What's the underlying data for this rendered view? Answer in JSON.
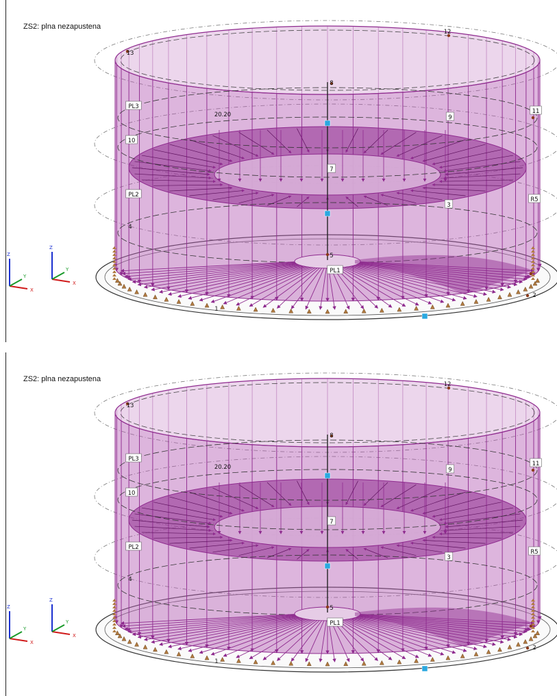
{
  "panels": [
    {
      "caption": "ZS2: plna nezapustena",
      "labels": {
        "n12": "12",
        "n13": "13",
        "n8": "8",
        "n11": "11",
        "n9": "9",
        "n10": "10",
        "n7": "7",
        "n3": "3",
        "n4": "4",
        "n5": "5",
        "n1": "1",
        "n2": "2",
        "nR5": "R5",
        "pl3": "PL3",
        "pl2": "PL2",
        "pl1": "PL1",
        "dim": "20.20"
      },
      "axes": {
        "z": "Z",
        "y": "Y",
        "x": "X"
      }
    },
    {
      "caption": "ZS2: plna nezapustena",
      "labels": {
        "n12": "12",
        "n13": "13",
        "n8": "8",
        "n11": "11",
        "n9": "9",
        "n10": "10",
        "n7": "7",
        "n3": "3",
        "n4": "4",
        "n5": "5",
        "n1": "1",
        "n2": "2",
        "nR5": "R5",
        "pl3": "PL3",
        "pl2": "PL2",
        "pl1": "PL1",
        "dim": "20.20"
      },
      "axes": {
        "z": "Z",
        "y": "Y",
        "x": "X"
      }
    }
  ],
  "colors": {
    "load": "#8e2a8e",
    "fill": "#b45ab4",
    "node": "#8b3a1a",
    "support": "#b07a40",
    "highlight": "#2aa8e0"
  }
}
